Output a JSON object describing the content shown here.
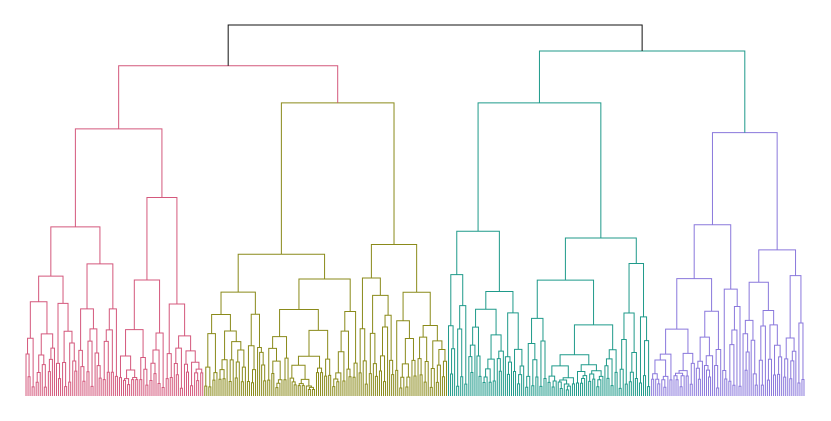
{
  "chart_data": {
    "type": "dendrogram",
    "title": "",
    "leaf_labels_shown": false,
    "axes_shown": false,
    "root_color": "#111111",
    "background": "#ffffff",
    "clusters": [
      {
        "name": "",
        "color": "#d4587c",
        "leaves": 88,
        "merge_height": 0.72
      },
      {
        "name": "",
        "color": "#8a8a1a",
        "leaves": 120,
        "merge_height": 0.79
      },
      {
        "name": "",
        "color": "#1f9a8a",
        "leaves": 100,
        "merge_height": 0.79
      },
      {
        "name": "",
        "color": "#8a78dc",
        "leaves": 76,
        "merge_height": 0.71
      }
    ],
    "group_merges": [
      {
        "left": [
          0,
          1
        ],
        "height": 0.89
      },
      {
        "left": [
          2,
          3
        ],
        "height": 0.93
      }
    ],
    "root_height": 1.0
  }
}
